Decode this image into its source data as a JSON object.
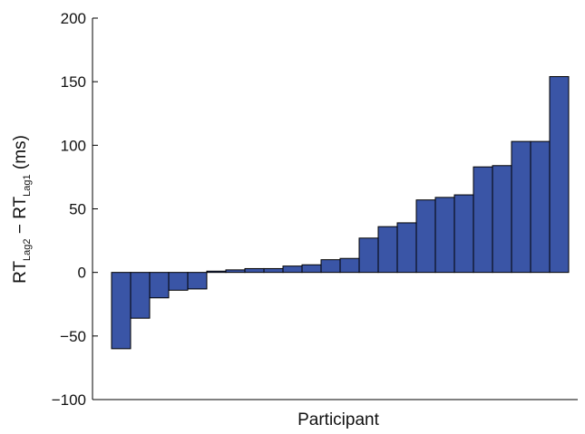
{
  "chart_data": {
    "type": "bar",
    "xlabel": "Participant",
    "ylabel": {
      "base1": "RT",
      "sub1": "Lag2",
      "op": " − ",
      "base2": "RT",
      "sub2": "Lag1",
      "unit": " (ms)"
    },
    "ylim": [
      -100,
      200
    ],
    "yticks": [
      200,
      150,
      100,
      50,
      0,
      -50,
      -100
    ],
    "ytick_labels": [
      "200",
      "150",
      "100",
      "50",
      "0",
      "−50",
      "−100"
    ],
    "grid": false,
    "values": [
      -60,
      -36,
      -20,
      -14,
      -13,
      1,
      2,
      3,
      3,
      5,
      6,
      10,
      11,
      27,
      36,
      39,
      57,
      59,
      61,
      83,
      84,
      103,
      103,
      154
    ],
    "bar_color": "#3A55A6",
    "bar_edge_color": "#000000"
  }
}
